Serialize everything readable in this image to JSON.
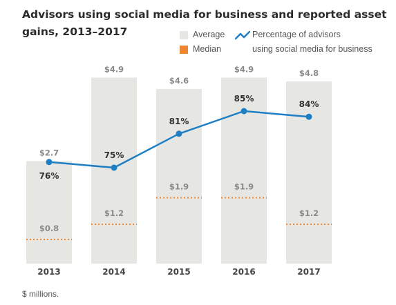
{
  "chart_data": {
    "type": "bar",
    "title": "Advisors using social media for business and reported asset gains, 2013–2017",
    "categories": [
      "2013",
      "2014",
      "2015",
      "2016",
      "2017"
    ],
    "series": [
      {
        "name": "Average",
        "values": [
          2.7,
          4.9,
          4.6,
          4.9,
          4.8
        ],
        "labels": [
          "$2.7",
          "$4.9",
          "$4.6",
          "$4.9",
          "$4.8"
        ],
        "color": "#e6e6e3"
      },
      {
        "name": "Median",
        "values": [
          0.8,
          1.2,
          1.9,
          1.9,
          1.2
        ],
        "labels": [
          "$0.8",
          "$1.2",
          "$1.9",
          "$1.9",
          "$1.2"
        ],
        "color": "#f0872f"
      },
      {
        "name": "Percentage of advisors using social media for business",
        "values": [
          76,
          75,
          81,
          85,
          84
        ],
        "labels": [
          "76%",
          "75%",
          "81%",
          "85%",
          "84%"
        ],
        "color": "#1f7fc4"
      }
    ],
    "ylim": [
      0,
      5.2
    ],
    "pct_ylim": [
      60,
      100
    ],
    "note": "$ millions."
  },
  "legend": {
    "average": "Average",
    "median": "Median",
    "pct_line1": "Percentage of advisors",
    "pct_line2": "using social media for business"
  }
}
